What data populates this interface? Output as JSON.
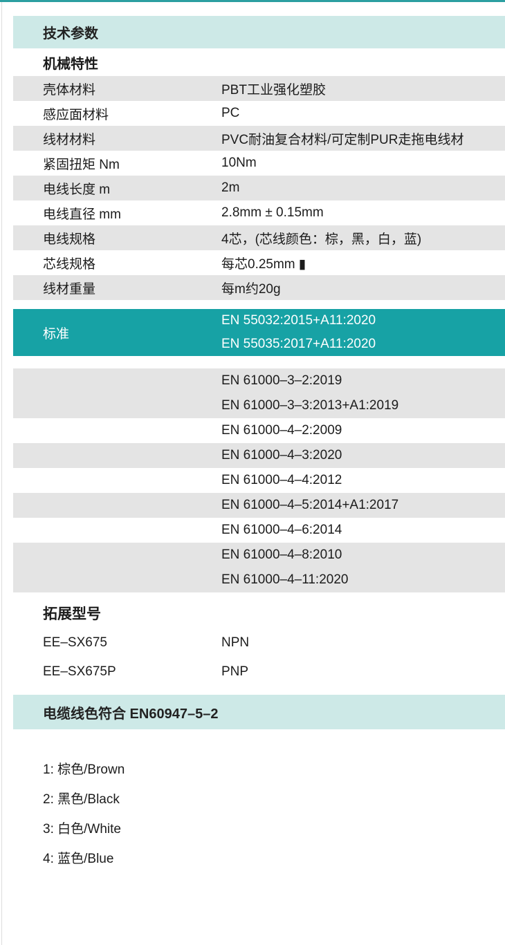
{
  "theme": {
    "accent_teal": "#17a2a5",
    "light_teal": "#cde9e7",
    "row_gray": "#e4e4e4",
    "top_line_color": "#2b9fa1"
  },
  "tech_params": {
    "title": "技术参数",
    "section_heading": "机械特性",
    "rows": [
      {
        "label": "壳体材料",
        "value": "PBT工业强化塑胶"
      },
      {
        "label": "感应面材料",
        "value": "PC"
      },
      {
        "label": "线材材料",
        "value": "PVC耐油复合材料/可定制PUR走拖电线材"
      },
      {
        "label": "紧固扭矩 Nm",
        "value": "10Nm"
      },
      {
        "label": "电线长度 m",
        "value": "2m"
      },
      {
        "label": "电线直径 mm",
        "value": "2.8mm ± 0.15mm"
      },
      {
        "label": "电线规格",
        "value": "4芯，(芯线颜色：棕，黑，白，蓝)"
      },
      {
        "label": "芯线规格",
        "value": "每芯0.25mm ▮"
      },
      {
        "label": "线材重量",
        "value": "每m约20g"
      }
    ]
  },
  "standards": {
    "label": "标准",
    "highlighted": [
      "EN 55032:2015+A11:2020",
      "EN 55035:2017+A11:2020"
    ],
    "groups": [
      {
        "lines": [
          "EN 61000–3–2:2019",
          "EN 61000–3–3:2013+A1:2019"
        ]
      },
      {
        "lines": [
          "EN 61000–4–2:2009"
        ]
      },
      {
        "lines": [
          "EN 61000–4–3:2020"
        ]
      },
      {
        "lines": [
          "EN 61000–4–4:2012"
        ]
      },
      {
        "lines": [
          "EN 61000–4–5:2014+A1:2017"
        ]
      },
      {
        "lines": [
          "EN 61000–4–6:2014"
        ]
      },
      {
        "lines": [
          "EN 61000–4–8:2010",
          "EN 61000–4–11:2020"
        ]
      }
    ]
  },
  "extended_models": {
    "title": "拓展型号",
    "rows": [
      {
        "model": "EE–SX675",
        "output": "NPN"
      },
      {
        "model": "EE–SX675P",
        "output": "PNP"
      }
    ]
  },
  "cable_colors": {
    "title": "电缆线色符合  EN60947–5–2",
    "items": [
      "1: 棕色/Brown",
      "2: 黑色/Black",
      "3: 白色/White",
      "4: 蓝色/Blue"
    ]
  }
}
